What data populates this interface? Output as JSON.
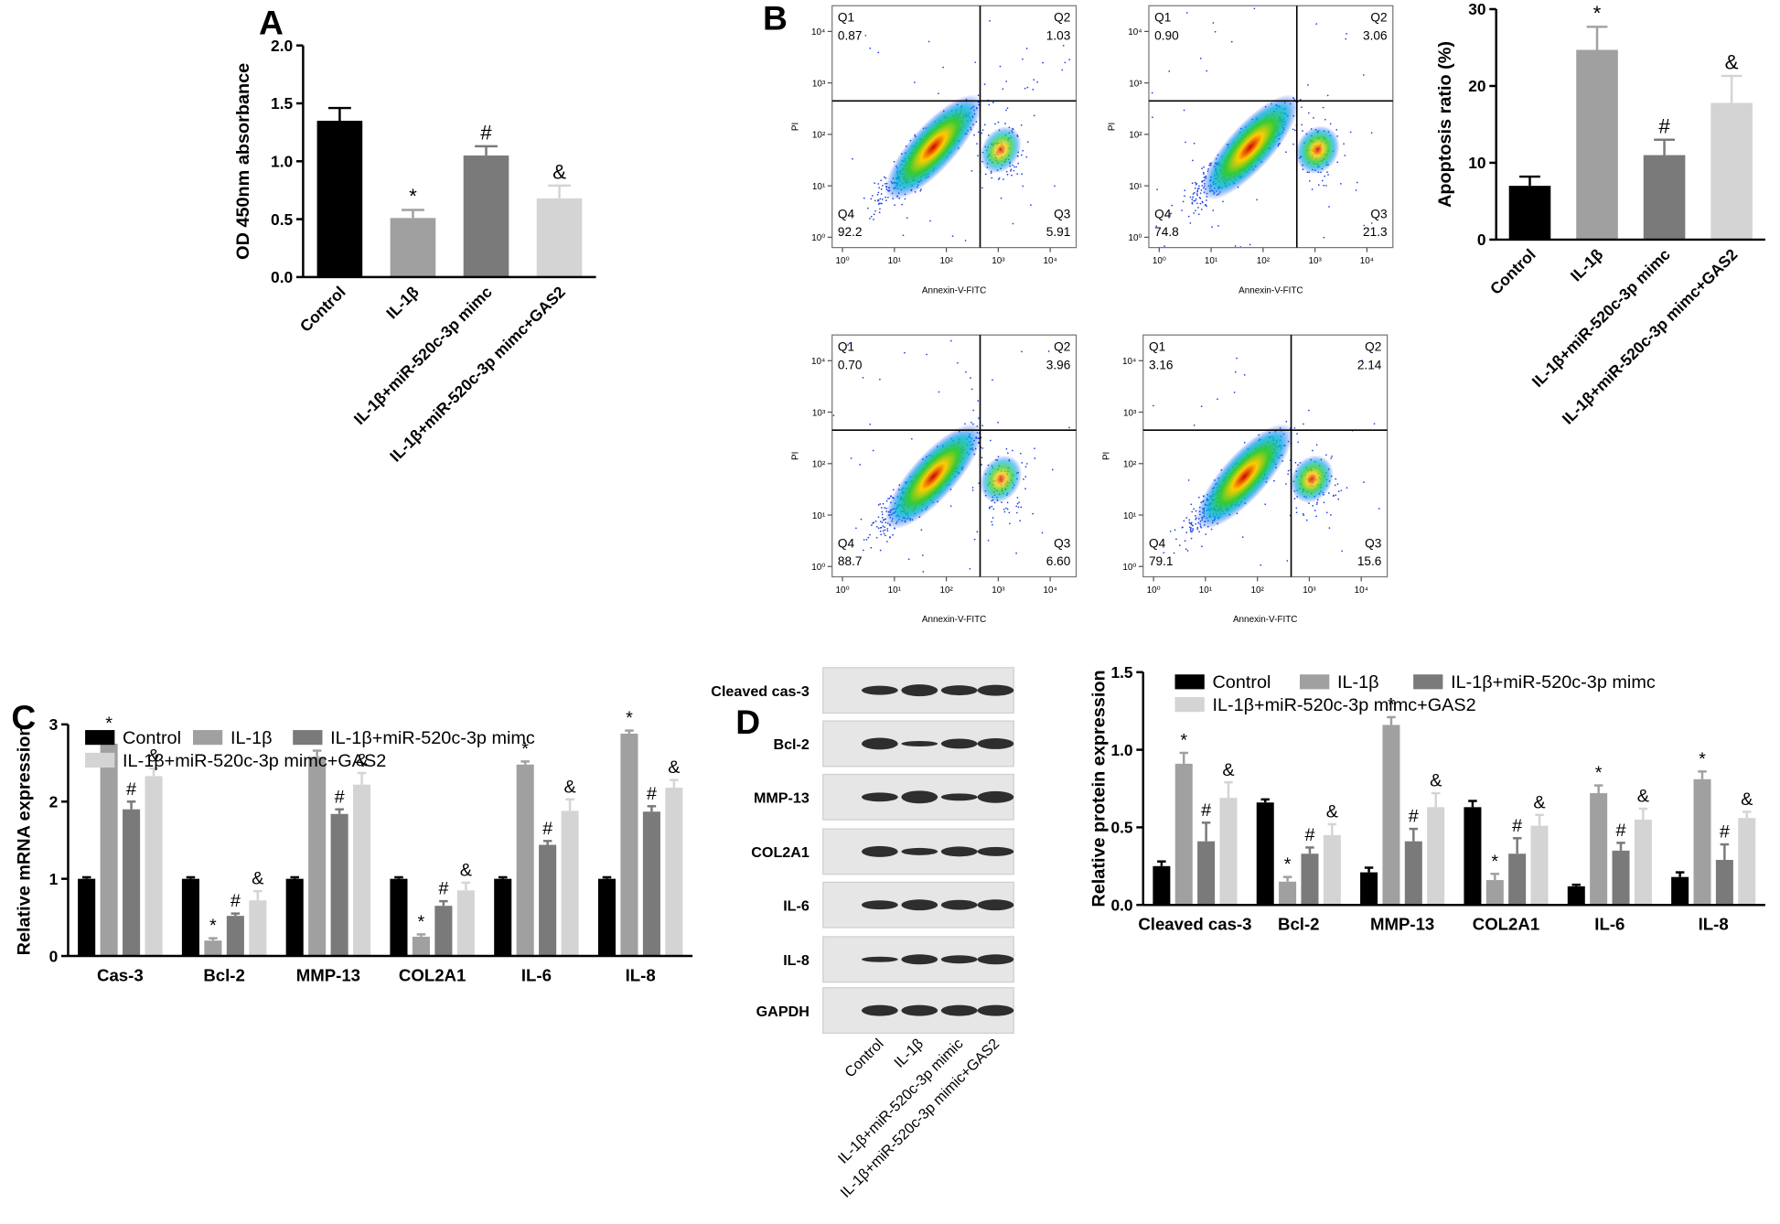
{
  "panels": [
    "A",
    "B",
    "C",
    "D"
  ],
  "chart_data": [
    {
      "type": "bar",
      "ylabel": "OD 450nm absorbance",
      "categories": [
        "Control",
        "IL-1β",
        "IL-1β+miR-520c-3p mimc",
        "IL-1β+miR-520c-3p mimc+GAS2"
      ],
      "values": [
        1.35,
        0.51,
        1.05,
        0.68
      ],
      "errors": [
        0.11,
        0.07,
        0.08,
        0.11
      ],
      "colors": [
        "#000000",
        "#a0a0a0",
        "#7a7a7a",
        "#d4d4d4"
      ],
      "markers": [
        null,
        "*",
        "#",
        "&"
      ],
      "ylim": [
        0,
        2
      ],
      "yticks": [
        {
          "value": 0,
          "label": "0.0"
        },
        {
          "value": 0.5,
          "label": "0.5"
        },
        {
          "value": 1,
          "label": "1.0"
        },
        {
          "value": 1.5,
          "label": "1.5"
        },
        {
          "value": 2,
          "label": "2.0"
        }
      ]
    },
    {
      "type": "bar",
      "ylabel": "Apoptosis ratio (%)",
      "categories": [
        "Control",
        "IL-1β",
        "IL-1β+miR-520c-3p mimc",
        "IL-1β+miR-520c-3p mimc+GAS2"
      ],
      "values": [
        7,
        24.7,
        11,
        17.8
      ],
      "errors": [
        1.2,
        3,
        2,
        3.5
      ],
      "colors": [
        "#000000",
        "#a0a0a0",
        "#7a7a7a",
        "#d4d4d4"
      ],
      "markers": [
        null,
        "*",
        "#",
        "&"
      ],
      "ylim": [
        0,
        30
      ],
      "yticks": [
        0,
        10,
        20,
        30
      ]
    },
    {
      "type": "grouped_bar",
      "ylabel": "Relative mRNA expression",
      "categories": [
        "Cas-3",
        "Bcl-2",
        "MMP-13",
        "COL2A1",
        "IL-6",
        "IL-8"
      ],
      "series": [
        {
          "name": "Control",
          "color": "#000000",
          "values": [
            1,
            1,
            1,
            1,
            1,
            1
          ],
          "errors": [
            0.02,
            0.02,
            0.02,
            0.02,
            0.02,
            0.02
          ]
        },
        {
          "name": "IL-1β",
          "color": "#a0a0a0",
          "marker": "*",
          "values": [
            2.75,
            0.2,
            2.58,
            0.25,
            2.48,
            2.88
          ],
          "errors": [
            0.1,
            0.03,
            0.08,
            0.03,
            0.04,
            0.04
          ]
        },
        {
          "name": "IL-1β+miR-520c-3p mimc",
          "color": "#7a7a7a",
          "marker": "#",
          "values": [
            1.9,
            0.52,
            1.84,
            0.65,
            1.44,
            1.87
          ],
          "errors": [
            0.1,
            0.03,
            0.06,
            0.06,
            0.05,
            0.07
          ]
        },
        {
          "name": "IL-1β+miR-520c-3p mimc+GAS2",
          "color": "#d4d4d4",
          "marker": "&",
          "values": [
            2.33,
            0.72,
            2.22,
            0.85,
            1.88,
            2.18
          ],
          "errors": [
            0.1,
            0.12,
            0.15,
            0.1,
            0.15,
            0.1
          ]
        }
      ],
      "ylim": [
        0,
        3
      ],
      "yticks": [
        0,
        1,
        2,
        3
      ],
      "legend": "top-left"
    },
    {
      "type": "grouped_bar",
      "ylabel": "Relative protein expression",
      "categories": [
        "Cleaved cas-3",
        "Bcl-2",
        "MMP-13",
        "COL2A1",
        "IL-6",
        "IL-8"
      ],
      "series": [
        {
          "name": "Control",
          "color": "#000000",
          "values": [
            0.25,
            0.66,
            0.21,
            0.63,
            0.12,
            0.18
          ],
          "errors": [
            0.03,
            0.02,
            0.03,
            0.04,
            0.01,
            0.03
          ]
        },
        {
          "name": "IL-1β",
          "color": "#a0a0a0",
          "marker": "*",
          "values": [
            0.91,
            0.15,
            1.16,
            0.16,
            0.72,
            0.81
          ],
          "errors": [
            0.07,
            0.03,
            0.05,
            0.04,
            0.05,
            0.05
          ]
        },
        {
          "name": "IL-1β+miR-520c-3p mimc",
          "color": "#7a7a7a",
          "marker": "#",
          "values": [
            0.41,
            0.33,
            0.41,
            0.33,
            0.35,
            0.29
          ],
          "errors": [
            0.12,
            0.04,
            0.08,
            0.1,
            0.05,
            0.1
          ]
        },
        {
          "name": "IL-1β+miR-520c-3p mimc+GAS2",
          "color": "#d4d4d4",
          "marker": "&",
          "values": [
            0.69,
            0.45,
            0.63,
            0.51,
            0.55,
            0.56
          ],
          "errors": [
            0.1,
            0.07,
            0.09,
            0.07,
            0.07,
            0.04
          ]
        }
      ],
      "ylim": [
        0,
        1.5
      ],
      "yticks": [
        {
          "value": 0,
          "label": "0.0"
        },
        {
          "value": 0.5,
          "label": "0.5"
        },
        {
          "value": 1,
          "label": "1.0"
        },
        {
          "value": 1.5,
          "label": "1.5"
        }
      ],
      "legend": "top-left"
    }
  ],
  "flow_plots": {
    "x_label": "Annexin-V-FITC",
    "y_label": "PI",
    "log_scale": true,
    "ticks": [
      {
        "value": 1,
        "label": "10⁰"
      },
      {
        "value": 10,
        "label": "10¹"
      },
      {
        "value": 100,
        "label": "10²"
      },
      {
        "value": 1000,
        "label": "10³"
      },
      {
        "value": 10000,
        "label": "10⁴"
      }
    ],
    "plots": [
      {
        "quadrants": [
          "Q1",
          "Q2",
          "Q3",
          "Q4"
        ],
        "values": [
          0.87,
          1.03,
          5.91,
          92.2
        ]
      },
      {
        "quadrants": [
          "Q1",
          "Q2",
          "Q3",
          "Q4"
        ],
        "values": [
          0.9,
          3.06,
          21.3,
          74.8
        ],
        "value_labels": [
          "0.90",
          "3.06",
          "21.3",
          "74.8"
        ]
      },
      {
        "quadrants": [
          "Q1",
          "Q2",
          "Q3",
          "Q4"
        ],
        "values": [
          0.7,
          3.96,
          6.6,
          88.7
        ],
        "value_labels": [
          "0.70",
          "3.96",
          "6.60",
          "88.7"
        ]
      },
      {
        "quadrants": [
          "Q1",
          "Q2",
          "Q3",
          "Q4"
        ],
        "values": [
          3.16,
          2.14,
          15.6,
          79.1
        ]
      }
    ]
  },
  "western_blot": {
    "rows": [
      "Cleaved cas-3",
      "Bcl-2",
      "MMP-13",
      "COL2A1",
      "IL-6",
      "IL-8",
      "GAPDH"
    ],
    "columns": [
      "Control",
      "IL-1β",
      "IL-1β+miR-520c-3p mimic",
      "IL-1β+miR-520c-3p mimic+GAS2"
    ]
  }
}
